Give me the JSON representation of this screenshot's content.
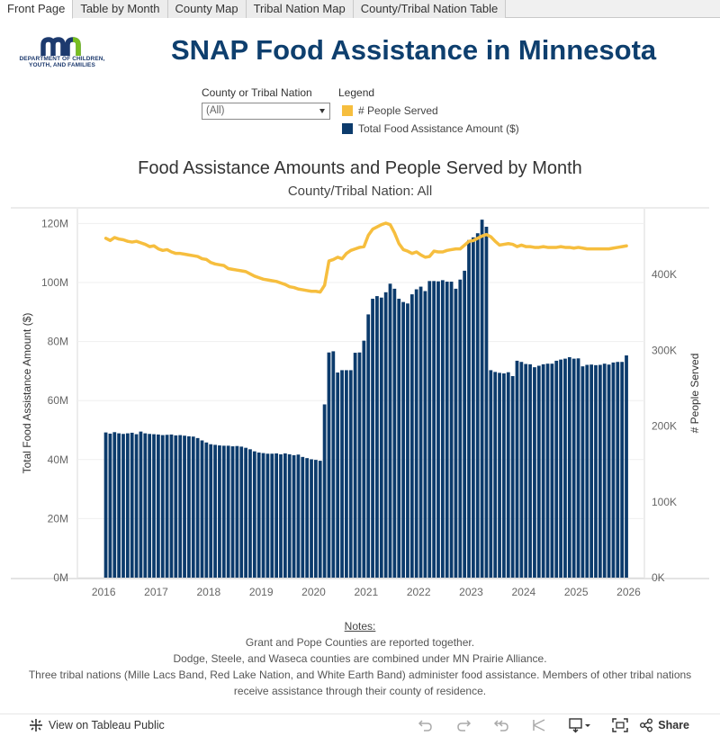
{
  "tabs": [
    "Front Page",
    "Table by Month",
    "County Map",
    "Tribal Nation Map",
    "County/Tribal Nation Table"
  ],
  "logo": {
    "mark": "mn",
    "org_line1": "DEPARTMENT OF CHILDREN,",
    "org_line2": "YOUTH, AND FAMILIES"
  },
  "header": {
    "title": "SNAP Food Assistance in Minnesota"
  },
  "filter": {
    "label": "County or Tribal Nation",
    "value": "(All)"
  },
  "legend": {
    "title": "Legend",
    "items": [
      {
        "label": "# People Served",
        "color": "#f6be3e"
      },
      {
        "label": "Total Food Assistance Amount ($)",
        "color": "#0c3b6c"
      }
    ]
  },
  "chart_data": {
    "type": "bar+line",
    "title": "Food Assistance Amounts and People Served by Month",
    "subtitle": "County/Tribal Nation: All",
    "xlabel": "",
    "ylabel_left": "Total Food Assistance Amount ($)",
    "ylabel_right": "# People Served",
    "xlim": [
      2015.5,
      2026.3
    ],
    "ylim_left": [
      0,
      125000000
    ],
    "ylim_right": [
      0,
      487000
    ],
    "x_ticks": [
      2016,
      2017,
      2018,
      2019,
      2020,
      2021,
      2022,
      2023,
      2024,
      2025,
      2026
    ],
    "left_ticks": [
      {
        "value": 0,
        "label": "0M"
      },
      {
        "value": 20000000,
        "label": "20M"
      },
      {
        "value": 40000000,
        "label": "40M"
      },
      {
        "value": 60000000,
        "label": "60M"
      },
      {
        "value": 80000000,
        "label": "80M"
      },
      {
        "value": 100000000,
        "label": "100M"
      },
      {
        "value": 120000000,
        "label": "120M"
      }
    ],
    "right_ticks": [
      {
        "value": 0,
        "label": "0K"
      },
      {
        "value": 100000,
        "label": "100K"
      },
      {
        "value": 200000,
        "label": "200K"
      },
      {
        "value": 300000,
        "label": "300K"
      },
      {
        "value": 400000,
        "label": "400K"
      }
    ],
    "series": [
      {
        "name": "Total Food Assistance Amount ($)",
        "kind": "bar",
        "color": "#0c3b6c",
        "start": [
          2016,
          1
        ],
        "unit": "millions",
        "values": [
          49.2,
          48.8,
          49.3,
          48.9,
          48.7,
          48.9,
          49.1,
          48.6,
          49.5,
          48.9,
          48.7,
          48.6,
          48.5,
          48.3,
          48.4,
          48.5,
          48.2,
          48.3,
          48.1,
          47.9,
          47.8,
          47.3,
          46.5,
          45.8,
          45.2,
          45.0,
          44.8,
          44.7,
          44.7,
          44.5,
          44.6,
          44.4,
          44.0,
          43.5,
          42.8,
          42.4,
          42.2,
          42.0,
          42.0,
          42.1,
          41.8,
          42.1,
          41.8,
          41.5,
          41.7,
          40.9,
          40.5,
          40.1,
          39.9,
          39.6,
          58.7,
          76.3,
          76.7,
          69.5,
          70.3,
          70.3,
          70.3,
          76.2,
          76.3,
          80.3,
          89.2,
          94.5,
          95.4,
          94.9,
          96.7,
          99.6,
          97.9,
          94.5,
          93.4,
          92.9,
          96.0,
          97.7,
          98.6,
          97.1,
          100.5,
          100.5,
          100.4,
          100.8,
          100.3,
          100.3,
          97.9,
          101.0,
          104.0,
          114.4,
          115.3,
          116.7,
          121.3,
          118.9,
          70.3,
          69.7,
          69.4,
          69.2,
          69.6,
          68.3,
          73.5,
          73.1,
          72.4,
          72.3,
          71.3,
          71.8,
          72.3,
          72.5,
          72.5,
          73.5,
          73.9,
          74.2,
          74.7,
          74.2,
          74.3,
          71.6,
          72.1,
          72.2,
          72.0,
          72.1,
          72.5,
          72.2,
          72.9,
          73.1,
          73.1,
          75.3
        ]
      },
      {
        "name": "# People Served",
        "kind": "line",
        "color": "#f6be3e",
        "start": [
          2016,
          1
        ],
        "unit": "thousands",
        "values": [
          448,
          445,
          449,
          447,
          446,
          444,
          443,
          444,
          442,
          440,
          437,
          438,
          434,
          432,
          433,
          430,
          428,
          428,
          427,
          426,
          425,
          424,
          421,
          420,
          416,
          414,
          413,
          412,
          408,
          407,
          406,
          405,
          404,
          401,
          398,
          396,
          394,
          393,
          392,
          391,
          389,
          387,
          384,
          383,
          381,
          380,
          379,
          378,
          378,
          377,
          386,
          418,
          420,
          423,
          421,
          428,
          432,
          434,
          436,
          437,
          452,
          460,
          463,
          466,
          468,
          466,
          455,
          441,
          433,
          431,
          428,
          430,
          426,
          423,
          424,
          431,
          430,
          430,
          432,
          433,
          434,
          434,
          439,
          444,
          445,
          448,
          451,
          453,
          450,
          444,
          439,
          440,
          441,
          440,
          437,
          439,
          437,
          437,
          436,
          436,
          437,
          436,
          436,
          436,
          437,
          436,
          436,
          435,
          436,
          435,
          434,
          434,
          434,
          434,
          434,
          434,
          435,
          436,
          437,
          438
        ]
      }
    ]
  },
  "notes": {
    "title": "Notes:",
    "lines": [
      "Grant and Pope Counties are reported together.",
      "Dodge, Steele, and Waseca counties are combined under MN Prairie Alliance.",
      "Three tribal nations (Mille Lacs Band, Red Lake Nation, and White Earth Band) administer food assistance. Members of other tribal nations receive assistance through their county of residence."
    ]
  },
  "footer": {
    "view_label": "View on Tableau Public",
    "share_label": "Share"
  }
}
